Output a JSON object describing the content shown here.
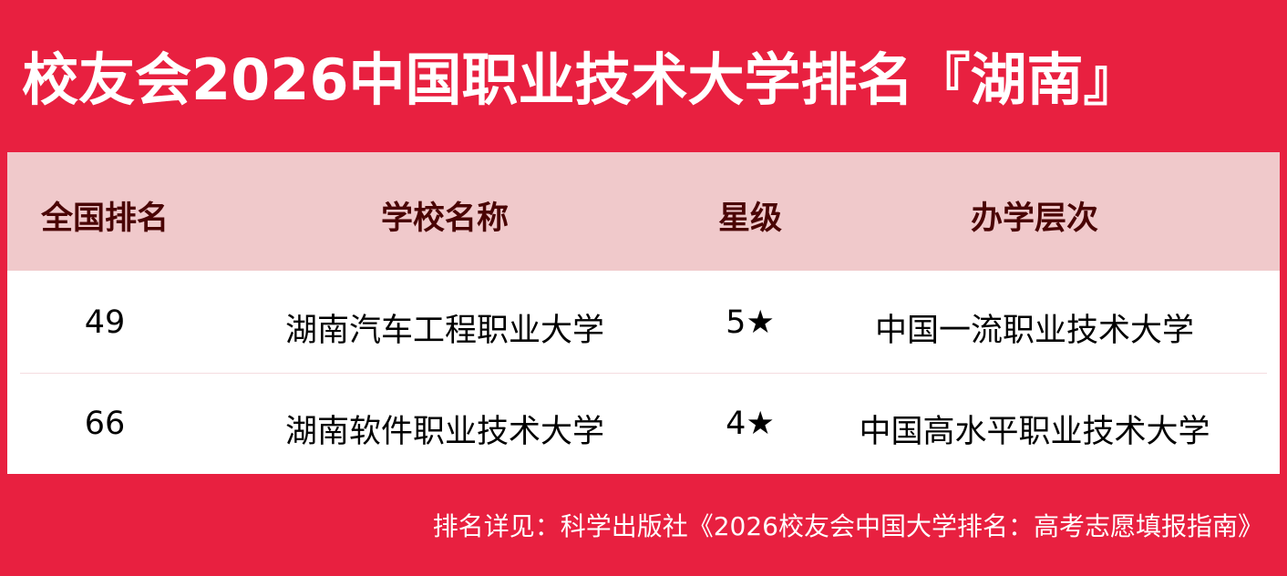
{
  "title": "校友会2026中国职业技术大学排名『湖南』",
  "colors": {
    "background": "#e82040",
    "header_bg": "#f0c9cb",
    "header_text": "#4a0404"
  },
  "table": {
    "headers": [
      "全国排名",
      "学校名称",
      "星级",
      "办学层次"
    ],
    "rows": [
      [
        "49",
        "湖南汽车工程职业大学",
        "5★",
        "中国一流职业技术大学"
      ],
      [
        "66",
        "湖南软件职业技术大学",
        "4★",
        "中国高水平职业技术大学"
      ]
    ]
  },
  "footer": "排名详见：科学出版社《2026校友会中国大学排名：高考志愿填报指南》"
}
